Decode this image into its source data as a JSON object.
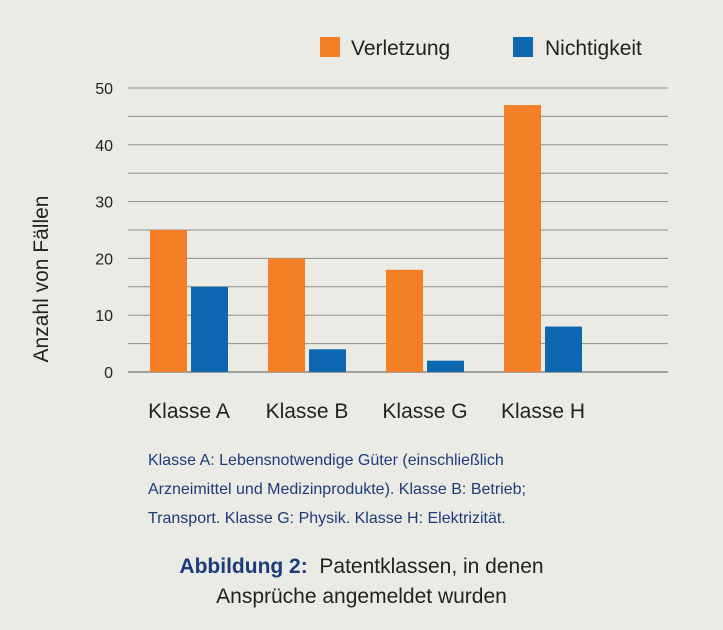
{
  "chart_data": {
    "type": "bar",
    "categories": [
      "Klasse A",
      "Klasse B",
      "Klasse G",
      "Klasse H"
    ],
    "series": [
      {
        "name": "Verletzung",
        "color": "#f47f26",
        "values": [
          25,
          20,
          18,
          47
        ]
      },
      {
        "name": "Nichtigkeit",
        "color": "#0e67b1",
        "values": [
          15,
          4,
          2,
          8
        ]
      }
    ],
    "ylabel": "Anzahl von Fällen",
    "ylim": [
      0,
      50
    ],
    "yticks": [
      0,
      10,
      20,
      30,
      40,
      50
    ],
    "grid": true,
    "legend": "top-right"
  },
  "footnote": {
    "lines": [
      "Klasse A: Lebensnotwendige Güter (einschließlich",
      "Arzneimittel und Medizinprodukte). Klasse B: Betrieb;",
      "Transport. Klasse G: Physik. Klasse H: Elektrizität."
    ]
  },
  "caption": {
    "label": "Abbildung 2:",
    "text_line1": "Patentklassen, in denen",
    "text_line2": "Ansprüche angemeldet wurden"
  }
}
